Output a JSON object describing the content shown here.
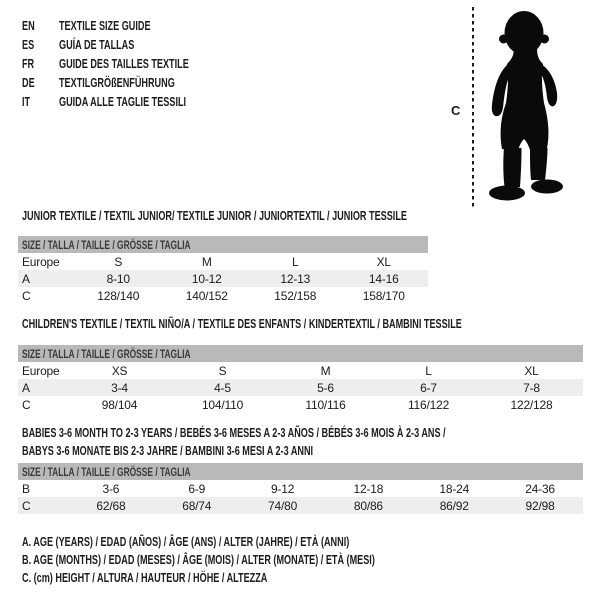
{
  "header": {
    "languages": [
      {
        "code": "EN",
        "label": "TEXTILE SIZE GUIDE"
      },
      {
        "code": "ES",
        "label": "GUÍA DE TALLAS"
      },
      {
        "code": "FR",
        "label": "GUIDE DES TAILLES TEXTILE"
      },
      {
        "code": "DE",
        "label": "TEXTILGRÖßENFÜHRUNG"
      },
      {
        "code": "IT",
        "label": "GUIDA ALLE TAGLIE TESSILI"
      }
    ]
  },
  "figure": {
    "silhouette": "baby-toddler-standing",
    "measure_label": "C"
  },
  "sections": [
    {
      "title": "JUNIOR TEXTILE / TEXTIL JUNIOR/ TEXTILE JUNIOR / JUNIORTEXTIL / JUNIOR TESSILE",
      "table": {
        "header": "SIZE / TALLA / TAILLE / GRÖSSE / TAGLIA",
        "rows": [
          [
            "Europe",
            "S",
            "M",
            "L",
            "XL"
          ],
          [
            "A",
            "8-10",
            "10-12",
            "12-13",
            "14-16"
          ],
          [
            "C",
            "128/140",
            "140/152",
            "152/158",
            "158/170"
          ]
        ]
      }
    },
    {
      "title": "CHILDREN'S TEXTILE / TEXTIL NIÑO/A / TEXTILE DES ENFANTS / KINDERTEXTIL / BAMBINI TESSILE",
      "table": {
        "header": "SIZE / TALLA / TAILLE / GRÖSSE / TAGLIA",
        "rows": [
          [
            "Europe",
            "XS",
            "S",
            "M",
            "L",
            "XL"
          ],
          [
            "A",
            "3-4",
            "4-5",
            "5-6",
            "6-7",
            "7-8"
          ],
          [
            "C",
            "98/104",
            "104/110",
            "110/116",
            "116/122",
            "122/128"
          ]
        ]
      }
    },
    {
      "title": "BABIES 3-6 MONTH TO 2-3 YEARS / BEBÉS 3-6 MESES A 2-3 AÑOS / BÉBÉS 3-6 MOIS À 2-3 ANS /",
      "title_line2": "BABYS 3-6 MONATE BIS 2-3 JAHRE / BAMBINI 3-6 MESI A 2-3 ANNI",
      "table": {
        "header": "SIZE / TALLA / TAILLE / GRÖSSE / TAGLIA",
        "rows": [
          [
            "B",
            "3-6",
            "6-9",
            "9-12",
            "12-18",
            "18-24",
            "24-36"
          ],
          [
            "C",
            "62/68",
            "68/74",
            "74/80",
            "80/86",
            "86/92",
            "92/98"
          ]
        ]
      }
    }
  ],
  "footer": {
    "lines": [
      "A. AGE (YEARS) / EDAD (AÑOS) / ÂGE (ANS) / ALTER (JAHRE) / ETÀ (ANNI)",
      "B. AGE (MONTHS) / EDAD (MESES) / ÂGE (MOIS) / ALTER (MONATE) / ETÀ (MESI)",
      "C. (cm) HEIGHT / ALTURA / HAUTEUR / HÖHE / ALTEZZA"
    ]
  },
  "colors": {
    "table_header_bg": "#b9b9b9",
    "table_alt_row_bg": "#eeeeee",
    "text": "#1c1c1c",
    "table_header_text": "#3a3a3a",
    "silhouette": "#0a0a0a"
  }
}
